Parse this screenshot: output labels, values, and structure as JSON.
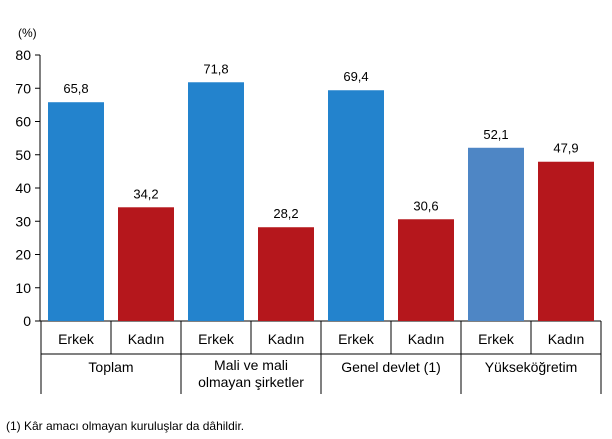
{
  "chart_data": {
    "type": "bar",
    "ylabel": "(%)",
    "ylim": [
      0,
      80
    ],
    "yticks": [
      0,
      10,
      20,
      30,
      40,
      50,
      60,
      70,
      80
    ],
    "grid": false,
    "legend": "none",
    "groups": [
      {
        "label": [
          "Toplam"
        ],
        "bars": [
          {
            "category": "Erkek",
            "value": 65.8,
            "label": "65,8",
            "color": "#2383cd"
          },
          {
            "category": "Kadın",
            "value": 34.2,
            "label": "34,2",
            "color": "#b5171c"
          }
        ]
      },
      {
        "label": [
          "Mali ve mali",
          "olmayan şirketler"
        ],
        "bars": [
          {
            "category": "Erkek",
            "value": 71.8,
            "label": "71,8",
            "color": "#2383cd"
          },
          {
            "category": "Kadın",
            "value": 28.2,
            "label": "28,2",
            "color": "#b5171c"
          }
        ]
      },
      {
        "label": [
          "Genel devlet (1)"
        ],
        "bars": [
          {
            "category": "Erkek",
            "value": 69.4,
            "label": "69,4",
            "color": "#2383cd"
          },
          {
            "category": "Kadın",
            "value": 30.6,
            "label": "30,6",
            "color": "#b5171c"
          }
        ]
      },
      {
        "label": [
          "Yükseköğretim"
        ],
        "bars": [
          {
            "category": "Erkek",
            "value": 52.1,
            "label": "52,1",
            "color": "#4e86c5"
          },
          {
            "category": "Kadın",
            "value": 47.9,
            "label": "47,9",
            "color": "#b5171c"
          }
        ]
      }
    ]
  },
  "footnote": "(1)  Kâr amacı olmayan kuruluşlar da dâhildir."
}
